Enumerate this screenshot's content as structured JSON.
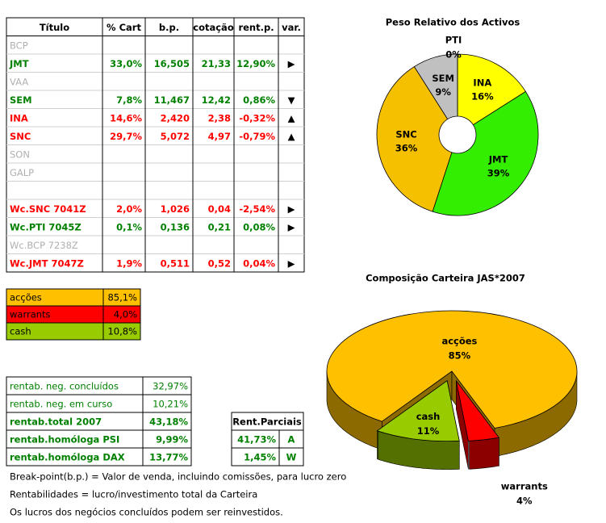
{
  "main_table": {
    "header": [
      "Título",
      "% Cart",
      "b.p.",
      "cotação",
      "rent.p.",
      "var."
    ],
    "rows": [
      {
        "cells": [
          "BCP"
        ],
        "color": "#b0b0b0"
      },
      {
        "cells": [
          "JMT",
          "33,0%",
          "16,505",
          "21,33",
          "12,90%",
          "▶"
        ],
        "color": "#008000"
      },
      {
        "cells": [
          "VAA"
        ],
        "color": "#b0b0b0"
      },
      {
        "cells": [
          "SEM",
          "7,8%",
          "11,467",
          "12,42",
          "0,86%",
          "▼"
        ],
        "color": "#008000"
      },
      {
        "cells": [
          "INA",
          "14,6%",
          "2,420",
          "2,38",
          "-0,32%",
          "▲"
        ],
        "color": "#ff0000"
      },
      {
        "cells": [
          "SNC",
          "29,7%",
          "5,072",
          "4,97",
          "-0,79%",
          "▲"
        ],
        "color": "#ff0000"
      },
      {
        "cells": [
          "SON"
        ],
        "color": "#b0b0b0"
      },
      {
        "cells": [
          "GALP"
        ],
        "color": "#b0b0b0"
      },
      {
        "cells": [],
        "color": "#b0b0b0"
      },
      {
        "cells": [
          "Wc.SNC 7041Z",
          "2,0%",
          "1,026",
          "0,04",
          "-2,54%",
          "▶"
        ],
        "color": "#ff0000"
      },
      {
        "cells": [
          "Wc.PTI 7045Z",
          "0,1%",
          "0,136",
          "0,21",
          "0,08%",
          "▶"
        ],
        "color": "#008000"
      },
      {
        "cells": [
          "Wc.BCP 7238Z"
        ],
        "color": "#b0b0b0"
      },
      {
        "cells": [
          "Wc.JMT 7047Z",
          "1,9%",
          "0,511",
          "0,52",
          "0,04%",
          "▶"
        ],
        "color": "#ff0000"
      }
    ]
  },
  "allocation_table": {
    "rows": [
      {
        "cells": [
          "acções",
          "85,1%"
        ],
        "color": "#ffc000"
      },
      {
        "cells": [
          "warrants",
          "4,0%"
        ],
        "color": "#ff0000"
      },
      {
        "cells": [
          "cash",
          "10,8%"
        ],
        "color": "#99cc00"
      }
    ]
  },
  "rentab_table": {
    "rows": [
      {
        "cells": [
          "rentab. neg. concluídos",
          "32,97%"
        ],
        "bold": false
      },
      {
        "cells": [
          "rentab. neg. em curso",
          "10,21%"
        ],
        "bold": false
      },
      {
        "cells": [
          "rentab.total 2007",
          "43,18%"
        ],
        "bold": true
      },
      {
        "cells": [
          "rentab.homóloga PSI",
          "9,99%"
        ],
        "bold": true
      },
      {
        "cells": [
          "rentab.homóloga DAX",
          "13,77%"
        ],
        "bold": true
      }
    ]
  },
  "parciais_table": {
    "header": "Rent.Parciais",
    "rows": [
      [
        "41,73%",
        "A"
      ],
      [
        "1,45%",
        "W"
      ]
    ]
  },
  "notes": [
    "Break-point(b.p.) = Valor de venda, incluindo comissões, para lucro zero",
    "Rentabilidades = lucro/investimento total da Carteira",
    "Os lucros dos negócios concluídos podem ser reinvestidos."
  ],
  "chart_data": [
    {
      "type": "donut",
      "title": "Peso Relativo dos Activos",
      "categories": [
        "INA",
        "JMT",
        "SNC",
        "SEM",
        "PTI"
      ],
      "values": [
        16,
        39,
        36,
        9,
        0
      ],
      "value_labels": [
        "16%",
        "39%",
        "36%",
        "9%",
        "0%"
      ],
      "colors": [
        "#ffff00",
        "#33ee00",
        "#f5c000",
        "#c0c0c0",
        "#9999ff"
      ]
    },
    {
      "type": "pie3d",
      "title": "Composição Carteira JAS*2007",
      "categories": [
        "acções",
        "warrants",
        "cash"
      ],
      "values": [
        85,
        4,
        11
      ],
      "value_labels": [
        "85%",
        "4%",
        "11%"
      ],
      "colors": [
        "#ffc000",
        "#ff0000",
        "#99cc00"
      ]
    }
  ]
}
